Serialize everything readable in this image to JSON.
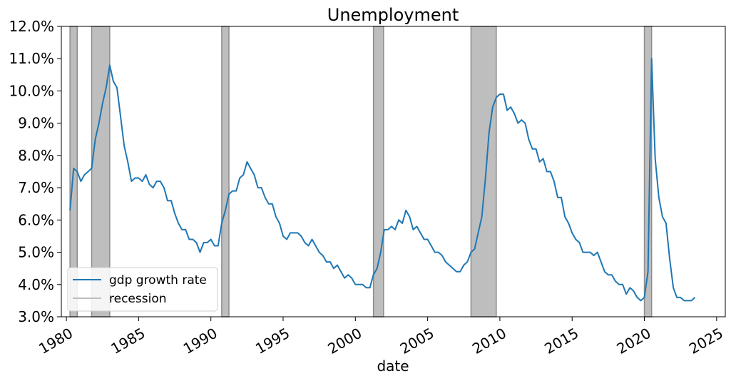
{
  "chart_data": {
    "type": "line",
    "title": "Unemployment",
    "xlabel": "date",
    "ylabel": "",
    "xlim": [
      1979.65,
      2025.6
    ],
    "ylim": [
      3.0,
      12.0
    ],
    "x_ticks": [
      1980,
      1985,
      1990,
      1995,
      2000,
      2005,
      2010,
      2015,
      2020,
      2025
    ],
    "x_tick_labels": [
      "1980",
      "1985",
      "1990",
      "1995",
      "2000",
      "2005",
      "2010",
      "2015",
      "2020",
      "2025"
    ],
    "y_ticks": [
      3,
      4,
      5,
      6,
      7,
      8,
      9,
      10,
      11,
      12
    ],
    "y_tick_labels": [
      "3.0%",
      "4.0%",
      "5.0%",
      "6.0%",
      "7.0%",
      "8.0%",
      "9.0%",
      "10.0%",
      "11.0%",
      "12.0%"
    ],
    "grid": false,
    "legend_placement": "lower-left",
    "series": [
      {
        "name": "gdp growth rate",
        "color": "#1f77b4",
        "x": [
          1980.25,
          1980.5,
          1980.75,
          1981.0,
          1981.25,
          1981.5,
          1981.75,
          1982.0,
          1982.25,
          1982.5,
          1982.75,
          1983.0,
          1983.25,
          1983.5,
          1983.75,
          1984.0,
          1984.25,
          1984.5,
          1984.75,
          1985.0,
          1985.25,
          1985.5,
          1985.75,
          1986.0,
          1986.25,
          1986.5,
          1986.75,
          1987.0,
          1987.25,
          1987.5,
          1987.75,
          1988.0,
          1988.25,
          1988.5,
          1988.75,
          1989.0,
          1989.25,
          1989.5,
          1989.75,
          1990.0,
          1990.25,
          1990.5,
          1990.75,
          1991.0,
          1991.25,
          1991.5,
          1991.75,
          1992.0,
          1992.25,
          1992.5,
          1992.75,
          1993.0,
          1993.25,
          1993.5,
          1993.75,
          1994.0,
          1994.25,
          1994.5,
          1994.75,
          1995.0,
          1995.25,
          1995.5,
          1995.75,
          1996.0,
          1996.25,
          1996.5,
          1996.75,
          1997.0,
          1997.25,
          1997.5,
          1997.75,
          1998.0,
          1998.25,
          1998.5,
          1998.75,
          1999.0,
          1999.25,
          1999.5,
          1999.75,
          2000.0,
          2000.25,
          2000.5,
          2000.75,
          2001.0,
          2001.25,
          2001.5,
          2001.75,
          2002.0,
          2002.25,
          2002.5,
          2002.75,
          2003.0,
          2003.25,
          2003.5,
          2003.75,
          2004.0,
          2004.25,
          2004.5,
          2004.75,
          2005.0,
          2005.25,
          2005.5,
          2005.75,
          2006.0,
          2006.25,
          2006.5,
          2006.75,
          2007.0,
          2007.25,
          2007.5,
          2007.75,
          2008.0,
          2008.25,
          2008.5,
          2008.75,
          2009.0,
          2009.25,
          2009.5,
          2009.75,
          2010.0,
          2010.25,
          2010.5,
          2010.75,
          2011.0,
          2011.25,
          2011.5,
          2011.75,
          2012.0,
          2012.25,
          2012.5,
          2012.75,
          2013.0,
          2013.25,
          2013.5,
          2013.75,
          2014.0,
          2014.25,
          2014.5,
          2014.75,
          2015.0,
          2015.25,
          2015.5,
          2015.75,
          2016.0,
          2016.25,
          2016.5,
          2016.75,
          2017.0,
          2017.25,
          2017.5,
          2017.75,
          2018.0,
          2018.25,
          2018.5,
          2018.75,
          2019.0,
          2019.25,
          2019.5,
          2019.75,
          2020.0,
          2020.25,
          2020.5,
          2020.75,
          2021.0,
          2021.25,
          2021.5,
          2021.75,
          2022.0,
          2022.25,
          2022.5,
          2022.75,
          2023.0,
          2023.25,
          2023.5
        ],
        "values": [
          6.3,
          7.6,
          7.5,
          7.2,
          7.4,
          7.5,
          7.6,
          8.5,
          9.0,
          9.6,
          10.1,
          10.8,
          10.3,
          10.1,
          9.2,
          8.3,
          7.8,
          7.2,
          7.3,
          7.3,
          7.2,
          7.4,
          7.1,
          7.0,
          7.2,
          7.2,
          7.0,
          6.6,
          6.6,
          6.2,
          5.9,
          5.7,
          5.7,
          5.4,
          5.4,
          5.3,
          5.0,
          5.3,
          5.3,
          5.4,
          5.2,
          5.2,
          5.9,
          6.3,
          6.8,
          6.9,
          6.9,
          7.3,
          7.4,
          7.8,
          7.6,
          7.4,
          7.0,
          7.0,
          6.7,
          6.5,
          6.5,
          6.1,
          5.9,
          5.5,
          5.4,
          5.6,
          5.6,
          5.6,
          5.5,
          5.3,
          5.2,
          5.4,
          5.2,
          5.0,
          4.9,
          4.7,
          4.7,
          4.5,
          4.6,
          4.4,
          4.2,
          4.3,
          4.2,
          4.0,
          4.0,
          4.0,
          3.9,
          3.9,
          4.3,
          4.5,
          5.0,
          5.7,
          5.7,
          5.8,
          5.7,
          6.0,
          5.9,
          6.3,
          6.1,
          5.7,
          5.8,
          5.6,
          5.4,
          5.4,
          5.2,
          5.0,
          5.0,
          4.9,
          4.7,
          4.6,
          4.5,
          4.4,
          4.4,
          4.6,
          4.7,
          5.0,
          5.1,
          5.6,
          6.1,
          7.3,
          8.7,
          9.5,
          9.8,
          9.9,
          9.9,
          9.4,
          9.5,
          9.3,
          9.0,
          9.1,
          9.0,
          8.5,
          8.2,
          8.2,
          7.8,
          7.9,
          7.5,
          7.5,
          7.2,
          6.7,
          6.7,
          6.1,
          5.9,
          5.6,
          5.4,
          5.3,
          5.0,
          5.0,
          5.0,
          4.9,
          5.0,
          4.7,
          4.4,
          4.3,
          4.3,
          4.1,
          4.0,
          4.0,
          3.7,
          3.9,
          3.8,
          3.6,
          3.5,
          3.6,
          4.4,
          11.0,
          7.9,
          6.7,
          6.1,
          5.9,
          4.8,
          3.9,
          3.6,
          3.6,
          3.5,
          3.5,
          3.5,
          3.6
        ]
      },
      {
        "name": "recession",
        "color": "#bebebe",
        "type": "shaded-span",
        "spans": [
          [
            1980.25,
            1980.75
          ],
          [
            1981.75,
            1983.0
          ],
          [
            1990.75,
            1991.25
          ],
          [
            2001.25,
            2001.95
          ],
          [
            2008.0,
            2009.75
          ],
          [
            2020.0,
            2020.5
          ]
        ]
      }
    ]
  }
}
